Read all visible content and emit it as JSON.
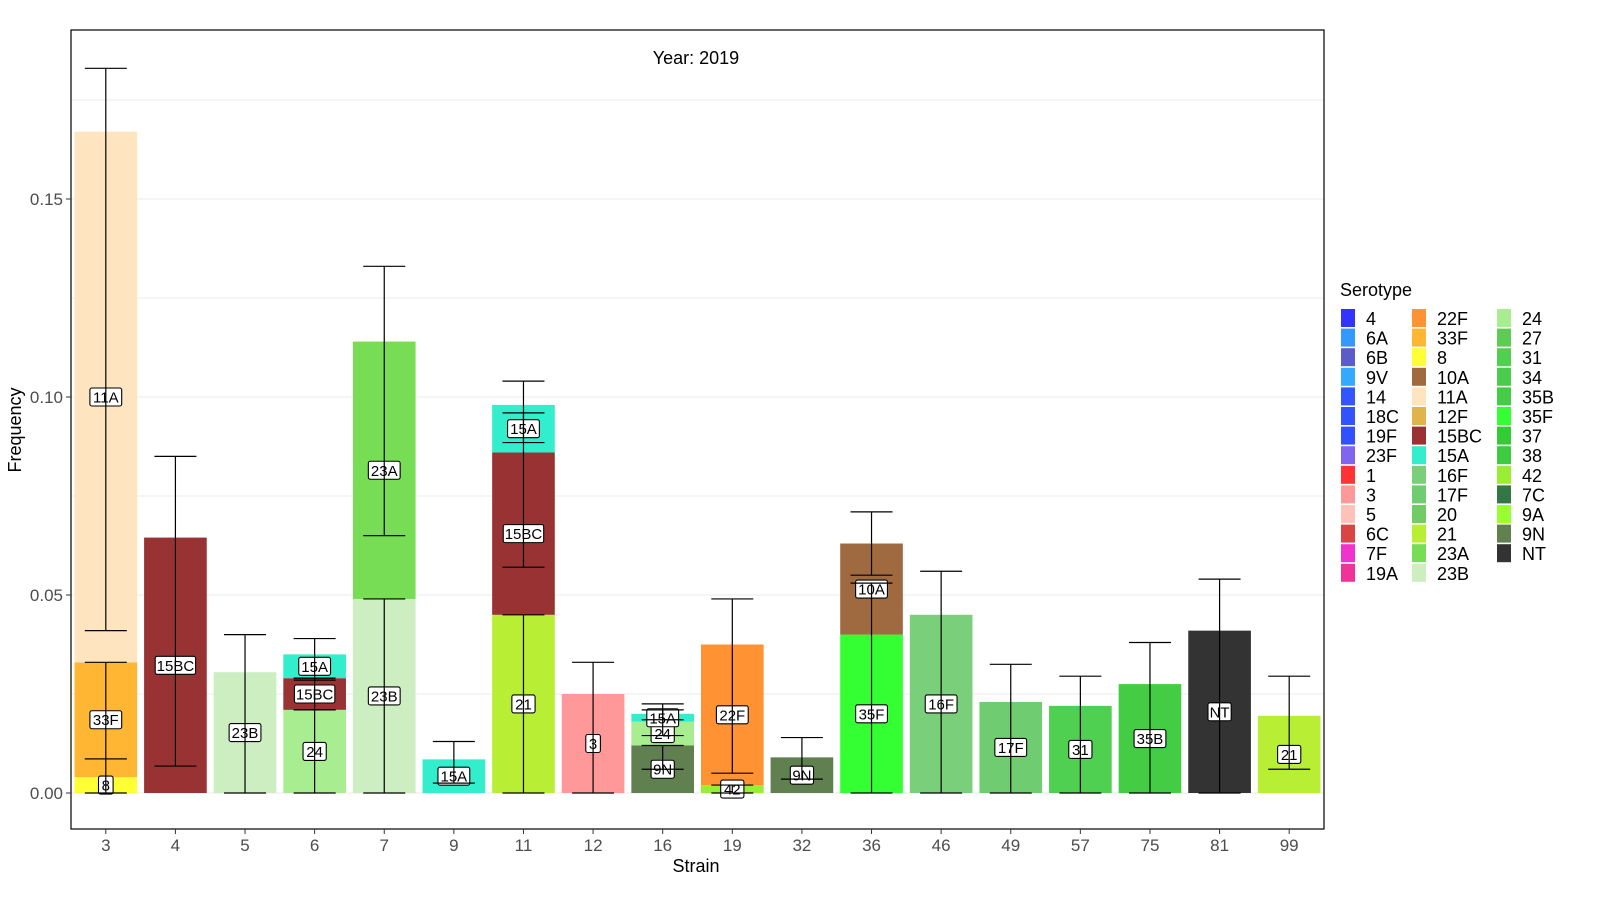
{
  "chart_data": {
    "type": "bar",
    "stacked": true,
    "title": "Year: 2019",
    "xlabel": "Strain",
    "ylabel": "Frequency",
    "ylim": [
      -0.009,
      0.193
    ],
    "yticks": [
      0.0,
      0.05,
      0.1,
      0.15
    ],
    "ytick_labels": [
      "0.00",
      "0.05",
      "0.10",
      "0.15"
    ],
    "grid": true,
    "categories": [
      "3",
      "4",
      "5",
      "6",
      "7",
      "9",
      "11",
      "12",
      "16",
      "19",
      "32",
      "36",
      "46",
      "49",
      "57",
      "75",
      "81",
      "99"
    ],
    "stacks": [
      {
        "strain": "3",
        "segments": [
          {
            "serotype": "8",
            "value": 0.004,
            "err": [
              0.0,
              0.0086
            ]
          },
          {
            "serotype": "33F",
            "value": 0.029,
            "err": [
              0.0086,
              0.033
            ]
          },
          {
            "serotype": "11A",
            "value": 0.134,
            "err": [
              0.041,
              0.183
            ]
          }
        ]
      },
      {
        "strain": "4",
        "segments": [
          {
            "serotype": "15BC",
            "value": 0.0645,
            "err": [
              0.0068,
              0.085
            ]
          }
        ]
      },
      {
        "strain": "5",
        "segments": [
          {
            "serotype": "23B",
            "value": 0.0305,
            "err": [
              0.0,
              0.04
            ]
          }
        ]
      },
      {
        "strain": "6",
        "segments": [
          {
            "serotype": "24",
            "value": 0.021,
            "err": [
              0.0,
              0.021
            ]
          },
          {
            "serotype": "15BC",
            "value": 0.008,
            "err": [
              0.021,
              0.029
            ]
          },
          {
            "serotype": "15A",
            "value": 0.006,
            "err": [
              0.0285,
              0.039
            ]
          }
        ]
      },
      {
        "strain": "7",
        "segments": [
          {
            "serotype": "23B",
            "value": 0.049,
            "err": [
              0.0,
              0.049
            ]
          },
          {
            "serotype": "23A",
            "value": 0.065,
            "err": [
              0.065,
              0.133
            ]
          }
        ]
      },
      {
        "strain": "9",
        "segments": [
          {
            "serotype": "15A",
            "value": 0.0085,
            "err": [
              0.0025,
              0.013
            ]
          }
        ]
      },
      {
        "strain": "11",
        "segments": [
          {
            "serotype": "21",
            "value": 0.045,
            "err": [
              0.0,
              0.045
            ]
          },
          {
            "serotype": "15BC",
            "value": 0.041,
            "err": [
              0.057,
              0.096
            ]
          },
          {
            "serotype": "15A",
            "value": 0.012,
            "err": [
              0.0885,
              0.104
            ]
          }
        ]
      },
      {
        "strain": "12",
        "segments": [
          {
            "serotype": "3",
            "value": 0.025,
            "err": [
              0.0,
              0.033
            ]
          }
        ]
      },
      {
        "strain": "16",
        "segments": [
          {
            "serotype": "9N",
            "value": 0.012,
            "err": [
              0.006,
              0.012
            ]
          },
          {
            "serotype": "24",
            "value": 0.006,
            "err": [
              0.0145,
              0.021
            ]
          },
          {
            "serotype": "15A",
            "value": 0.002,
            "err": [
              0.0185,
              0.0225
            ]
          }
        ]
      },
      {
        "strain": "19",
        "segments": [
          {
            "serotype": "42",
            "value": 0.002,
            "err": [
              0.0,
              0.002
            ]
          },
          {
            "serotype": "22F",
            "value": 0.0355,
            "err": [
              0.005,
              0.049
            ]
          }
        ]
      },
      {
        "strain": "32",
        "segments": [
          {
            "serotype": "9N",
            "value": 0.009,
            "err": [
              0.0035,
              0.014
            ]
          }
        ]
      },
      {
        "strain": "36",
        "segments": [
          {
            "serotype": "35F",
            "value": 0.04,
            "err": [
              0.0,
              0.053
            ]
          },
          {
            "serotype": "10A",
            "value": 0.023,
            "err": [
              0.055,
              0.071
            ]
          }
        ]
      },
      {
        "strain": "46",
        "segments": [
          {
            "serotype": "16F",
            "value": 0.045,
            "err": [
              0.0,
              0.056
            ]
          }
        ]
      },
      {
        "strain": "49",
        "segments": [
          {
            "serotype": "17F",
            "value": 0.023,
            "err": [
              0.0,
              0.0325
            ]
          }
        ]
      },
      {
        "strain": "57",
        "segments": [
          {
            "serotype": "31",
            "value": 0.022,
            "err": [
              0.0,
              0.0295
            ]
          }
        ]
      },
      {
        "strain": "75",
        "segments": [
          {
            "serotype": "35B",
            "value": 0.0275,
            "err": [
              0.0,
              0.038
            ]
          }
        ]
      },
      {
        "strain": "81",
        "segments": [
          {
            "serotype": "NT",
            "value": 0.041,
            "err": [
              0.0,
              0.054
            ]
          }
        ]
      },
      {
        "strain": "99",
        "segments": [
          {
            "serotype": "21",
            "value": 0.0195,
            "err": [
              0.006,
              0.0295
            ]
          }
        ]
      }
    ],
    "legend": {
      "title": "Serotype",
      "placement": "right",
      "columns": [
        [
          {
            "label": "4",
            "color": "#3333FF"
          },
          {
            "label": "6A",
            "color": "#3399FF"
          },
          {
            "label": "6B",
            "color": "#5C5CC8"
          },
          {
            "label": "9V",
            "color": "#33AAFF"
          },
          {
            "label": "14",
            "color": "#3355FF"
          },
          {
            "label": "18C",
            "color": "#3352FF"
          },
          {
            "label": "19F",
            "color": "#3350FF"
          },
          {
            "label": "23F",
            "color": "#8066EE"
          },
          {
            "label": "1",
            "color": "#FF3333"
          },
          {
            "label": "3",
            "color": "#FF9999"
          },
          {
            "label": "5",
            "color": "#FFC2B8"
          },
          {
            "label": "6C",
            "color": "#D94444"
          },
          {
            "label": "7F",
            "color": "#F033CC"
          },
          {
            "label": "19A",
            "color": "#F03399"
          }
        ],
        [
          {
            "label": "22F",
            "color": "#FF9233"
          },
          {
            "label": "33F",
            "color": "#FFB733"
          },
          {
            "label": "8",
            "color": "#FFFF33"
          },
          {
            "label": "10A",
            "color": "#A06A40"
          },
          {
            "label": "11A",
            "color": "#FFE4C0"
          },
          {
            "label": "12F",
            "color": "#E0B44C"
          },
          {
            "label": "15BC",
            "color": "#993333"
          },
          {
            "label": "15A",
            "color": "#33EECC"
          },
          {
            "label": "16F",
            "color": "#7AD07A"
          },
          {
            "label": "17F",
            "color": "#70CC70"
          },
          {
            "label": "20",
            "color": "#72CC66"
          },
          {
            "label": "21",
            "color": "#B8EE33"
          },
          {
            "label": "23A",
            "color": "#77DD55"
          },
          {
            "label": "23B",
            "color": "#CCEEC0"
          }
        ],
        [
          {
            "label": "24",
            "color": "#A8EE90"
          },
          {
            "label": "27",
            "color": "#5CCC55"
          },
          {
            "label": "31",
            "color": "#50D050"
          },
          {
            "label": "34",
            "color": "#4CCC4C"
          },
          {
            "label": "35B",
            "color": "#44CC44"
          },
          {
            "label": "35F",
            "color": "#33FF33"
          },
          {
            "label": "37",
            "color": "#33CC33"
          },
          {
            "label": "38",
            "color": "#3ECC3E"
          },
          {
            "label": "42",
            "color": "#99EE33"
          },
          {
            "label": "7C",
            "color": "#337744"
          },
          {
            "label": "9A",
            "color": "#99FF33"
          },
          {
            "label": "9N",
            "color": "#608050"
          },
          {
            "label": "NT",
            "color": "#333333"
          }
        ]
      ]
    }
  }
}
